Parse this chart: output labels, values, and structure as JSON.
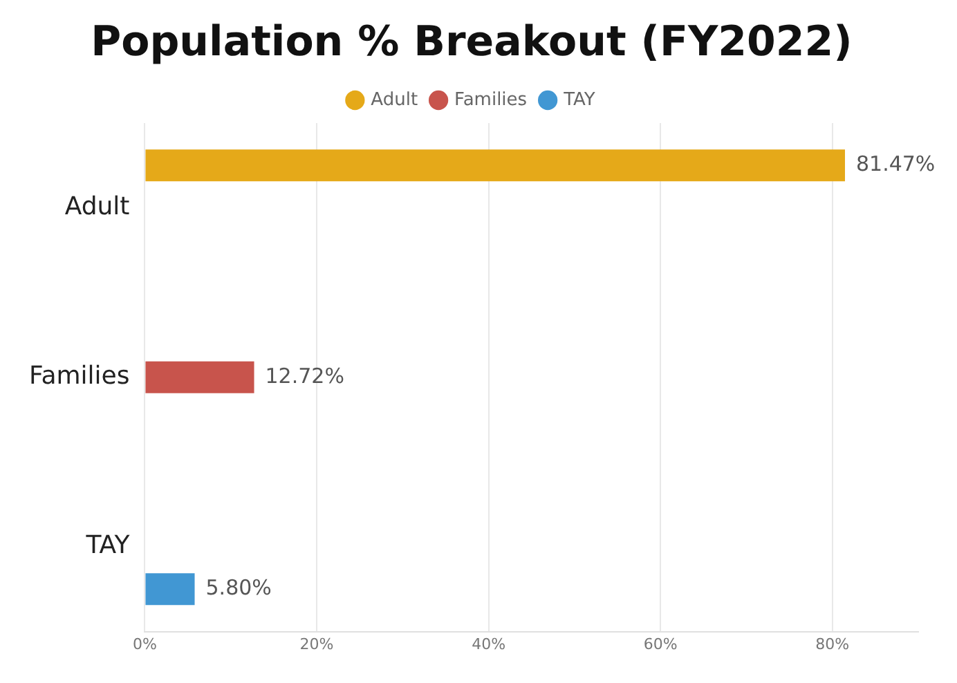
{
  "chart_data": {
    "type": "bar",
    "orientation": "horizontal",
    "title": "Population % Breakout (FY2022)",
    "categories": [
      "Adult",
      "Families",
      "TAY"
    ],
    "series": [
      {
        "name": "Adult",
        "color": "#e5a919",
        "values": [
          81.47,
          null,
          null
        ],
        "value_labels": [
          "81.47%",
          null,
          null
        ]
      },
      {
        "name": "Families",
        "color": "#c8544c",
        "values": [
          null,
          12.72,
          null
        ],
        "value_labels": [
          null,
          "12.72%",
          null
        ]
      },
      {
        "name": "TAY",
        "color": "#4197d3",
        "values": [
          null,
          null,
          5.8
        ],
        "value_labels": [
          null,
          null,
          "5.80%"
        ]
      }
    ],
    "xlim": [
      0,
      90
    ],
    "xticks": [
      {
        "value": 0,
        "label": "0%"
      },
      {
        "value": 20,
        "label": "20%"
      },
      {
        "value": 40,
        "label": "40%"
      },
      {
        "value": 60,
        "label": "60%"
      },
      {
        "value": 80,
        "label": "80%"
      }
    ],
    "grid": "x",
    "legend": "top",
    "marker": "circle"
  }
}
